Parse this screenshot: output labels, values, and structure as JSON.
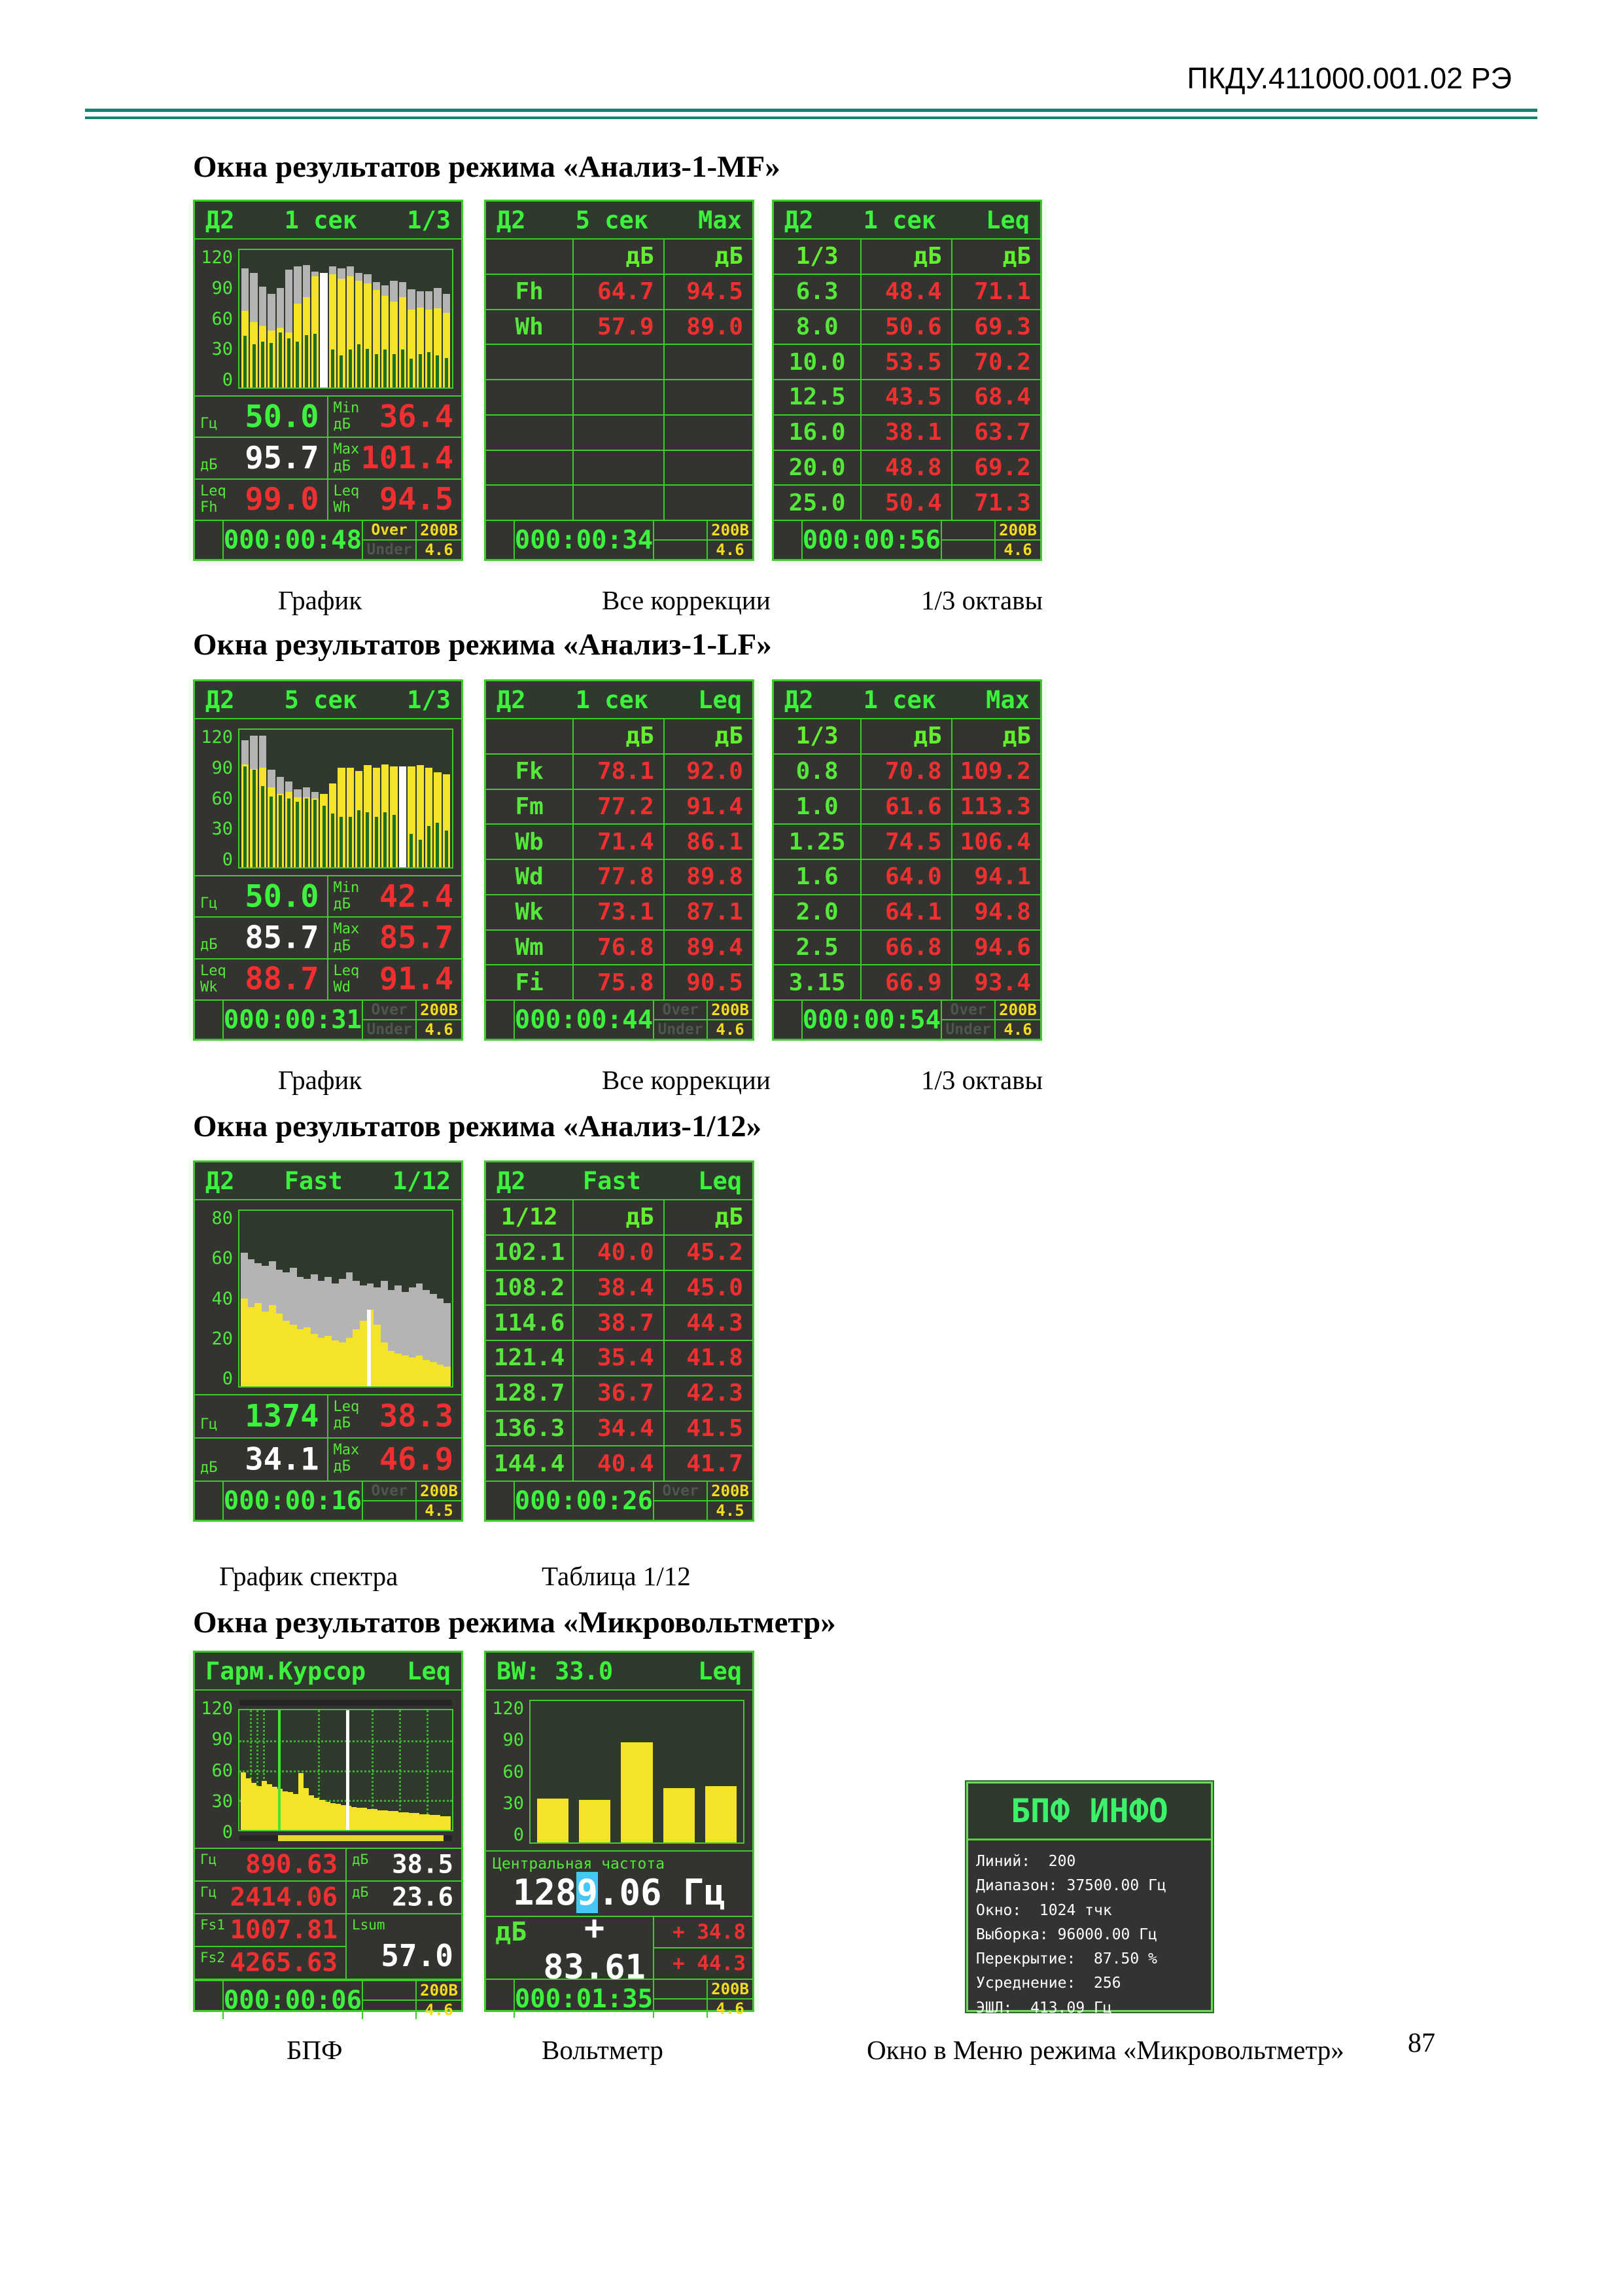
{
  "doc": {
    "header_code": "ПКДУ.411000.001.02 РЭ",
    "page_number": "87",
    "titles": [
      "Окна результатов режима «Анализ-1-MF»",
      "Окна результатов режима «Анализ-1-LF»",
      "Окна результатов режима «Анализ-1/12»",
      "Окна результатов режима «Микровольтметр»"
    ],
    "captions_row1": [
      "График",
      "Все коррекции",
      "1/3 октавы"
    ],
    "captions_row2": [
      "График",
      "Все коррекции",
      "1/3 октавы"
    ],
    "captions_row3": [
      "График спектра",
      "Таблица 1/12"
    ],
    "captions_row4": [
      "БПФ",
      "Вольтметр",
      "Окно в Меню режима «Микровольтметр»"
    ]
  },
  "screens": {
    "a1": {
      "title": {
        "l": "Д2",
        "m": "1 сек",
        "r": "1/3"
      },
      "axis": [
        "120",
        "90",
        "60",
        "30",
        "0"
      ],
      "chart": {
        "type": "bar",
        "ylim": [
          0,
          120
        ],
        "gray": [
          104,
          100,
          88,
          82,
          87,
          103,
          106,
          107,
          101,
          100,
          106,
          104,
          106,
          100,
          99,
          92,
          89,
          93,
          92,
          86,
          84,
          84,
          87,
          82
        ],
        "yellow": [
          67,
          57,
          54,
          50,
          52,
          48,
          73,
          79,
          97,
          100,
          99,
          95,
          97,
          93,
          91,
          85,
          80,
          75,
          79,
          68,
          70,
          68,
          69,
          65
        ],
        "green": [
          45,
          38,
          40,
          39,
          48,
          43,
          40,
          46,
          47,
          0,
          33,
          28,
          33,
          38,
          34,
          29,
          33,
          29,
          33,
          25,
          29,
          31,
          28,
          26
        ],
        "cursor": 9,
        "cursor_h": 100
      },
      "cells": [
        {
          "label": "Гц",
          "value": "50.0",
          "color": "green"
        },
        {
          "label": "Min\nдБ",
          "value": "36.4",
          "color": "red"
        },
        {
          "label": "дБ",
          "value": "95.7",
          "color": "white"
        },
        {
          "label": "Max\nдБ",
          "value": "101.4",
          "color": "red"
        },
        {
          "label": "Leq\nFh",
          "value": "99.0",
          "color": "red"
        },
        {
          "label": "Leq\nWh",
          "value": "94.5",
          "color": "red"
        }
      ],
      "status": {
        "timer": "000:00:48",
        "over": "Over",
        "under": "Under",
        "range": "200В",
        "gain": "4.6"
      }
    },
    "b1": {
      "title": {
        "l": "Д2",
        "m": "5 сек",
        "r": "Max"
      },
      "head": [
        "",
        "дБ",
        "дБ"
      ],
      "rows": [
        [
          "Fh",
          "64.7",
          "94.5"
        ],
        [
          "Wh",
          "57.9",
          "89.0"
        ],
        [
          "",
          "",
          ""
        ],
        [
          "",
          "",
          ""
        ],
        [
          "",
          "",
          ""
        ],
        [
          "",
          "",
          ""
        ],
        [
          "",
          "",
          ""
        ]
      ],
      "status": {
        "timer": "000:00:34",
        "over": "",
        "under": "",
        "range": "200В",
        "gain": "4.6"
      }
    },
    "b2": {
      "title": {
        "l": "Д2",
        "m": "1 сек",
        "r": "Leq"
      },
      "head": [
        "1/3",
        "дБ",
        "дБ"
      ],
      "rows": [
        [
          "6.3",
          "48.4",
          "71.1"
        ],
        [
          "8.0",
          "50.6",
          "69.3"
        ],
        [
          "10.0",
          "53.5",
          "70.2"
        ],
        [
          "12.5",
          "43.5",
          "68.4"
        ],
        [
          "16.0",
          "38.1",
          "63.7"
        ],
        [
          "20.0",
          "48.8",
          "69.2"
        ],
        [
          "25.0",
          "50.4",
          "71.3"
        ]
      ],
      "status": {
        "timer": "000:00:56",
        "over": "",
        "under": "",
        "range": "200В",
        "gain": "4.6"
      }
    },
    "a2": {
      "title": {
        "l": "Д2",
        "m": "5 сек",
        "r": "1/3"
      },
      "axis": [
        "120",
        "90",
        "60",
        "30",
        "0"
      ],
      "chart": {
        "type": "bar",
        "ylim": [
          0,
          120
        ],
        "gray": [
          111,
          115,
          115,
          85,
          79,
          75,
          68,
          70,
          66,
          64,
          73,
          87,
          87,
          84,
          89,
          87,
          90,
          88,
          88,
          88,
          89,
          87,
          83,
          81
        ],
        "yellow": [
          90,
          86,
          87,
          70,
          64,
          66,
          61,
          61,
          60,
          64,
          73,
          87,
          87,
          84,
          89,
          87,
          90,
          88,
          88,
          88,
          89,
          87,
          83,
          81
        ],
        "green": [
          88,
          85,
          71,
          62,
          63,
          60,
          57,
          60,
          59,
          54,
          47,
          44,
          44,
          50,
          48,
          44,
          48,
          46,
          0,
          29,
          24,
          36,
          39,
          32
        ],
        "cursor": 18,
        "cursor_h": 88
      },
      "cells": [
        {
          "label": "Гц",
          "value": "50.0",
          "color": "green"
        },
        {
          "label": "Min\nдБ",
          "value": "42.4",
          "color": "red"
        },
        {
          "label": "дБ",
          "value": "85.7",
          "color": "white"
        },
        {
          "label": "Max\nдБ",
          "value": "85.7",
          "color": "red"
        },
        {
          "label": "Leq\nWk",
          "value": "88.7",
          "color": "red"
        },
        {
          "label": "Leq\nWd",
          "value": "91.4",
          "color": "red"
        }
      ],
      "status": {
        "timer": "000:00:31",
        "over": "Over",
        "under": "Under",
        "range": "200В",
        "gain": "4.6"
      }
    },
    "b3": {
      "title": {
        "l": "Д2",
        "m": "1 сек",
        "r": "Leq"
      },
      "head": [
        "",
        "дБ",
        "дБ"
      ],
      "rows": [
        [
          "Fk",
          "78.1",
          "92.0"
        ],
        [
          "Fm",
          "77.2",
          "91.4"
        ],
        [
          "Wb",
          "71.4",
          "86.1"
        ],
        [
          "Wd",
          "77.8",
          "89.8"
        ],
        [
          "Wk",
          "73.1",
          "87.1"
        ],
        [
          "Wm",
          "76.8",
          "89.4"
        ],
        [
          "Fi",
          "75.8",
          "90.5"
        ]
      ],
      "status": {
        "timer": "000:00:44",
        "over": "Over",
        "under": "Under",
        "range": "200В",
        "gain": "4.6"
      }
    },
    "b4": {
      "title": {
        "l": "Д2",
        "m": "1 сек",
        "r": "Max"
      },
      "head": [
        "1/3",
        "дБ",
        "дБ"
      ],
      "rows": [
        [
          "0.8",
          "70.8",
          "109.2"
        ],
        [
          "1.0",
          "61.6",
          "113.3"
        ],
        [
          "1.25",
          "74.5",
          "106.4"
        ],
        [
          "1.6",
          "64.0",
          "94.1"
        ],
        [
          "2.0",
          "64.1",
          "94.8"
        ],
        [
          "2.5",
          "66.8",
          "94.6"
        ],
        [
          "3.15",
          "66.9",
          "93.4"
        ]
      ],
      "status": {
        "timer": "000:00:54",
        "over": "Over",
        "under": "Under",
        "range": "200В",
        "gain": "4.6"
      }
    },
    "c1": {
      "title": {
        "l": "Д2",
        "m": "Fast",
        "r": "1/12"
      },
      "axis": [
        "80",
        "60",
        "40",
        "20",
        "0"
      ],
      "chart": {
        "type": "area",
        "ylim": [
          0,
          80
        ],
        "gray": [
          61,
          58,
          56,
          55,
          57,
          53,
          52,
          54,
          50,
          49,
          51,
          48,
          50,
          47,
          49,
          52,
          48,
          46,
          47,
          45,
          48,
          44,
          46,
          43,
          45,
          47,
          44,
          42,
          40,
          38
        ],
        "yellow": [
          40,
          36,
          38,
          34,
          37,
          33,
          30,
          28,
          26,
          27,
          24,
          22,
          23,
          21,
          20,
          22,
          26,
          30,
          35,
          28,
          20,
          16,
          15,
          14,
          13,
          14,
          12,
          11,
          10,
          9
        ],
        "cursor": 18,
        "cursor_h": 35
      },
      "cells": [
        {
          "label": "Гц",
          "value": "1374",
          "color": "green"
        },
        {
          "label": "Leq\nдБ",
          "value": "38.3",
          "color": "red"
        },
        {
          "label": "дБ",
          "value": "34.1",
          "color": "white"
        },
        {
          "label": "Max\nдБ",
          "value": "46.9",
          "color": "red"
        }
      ],
      "status": {
        "timer": "000:00:16",
        "over": "Over",
        "under": "",
        "range": "200В",
        "gain": "4.5"
      }
    },
    "b5": {
      "title": {
        "l": "Д2",
        "m": "Fast",
        "r": "Leq"
      },
      "head": [
        "1/12",
        "дБ",
        "дБ"
      ],
      "rows": [
        [
          "102.1",
          "40.0",
          "45.2"
        ],
        [
          "108.2",
          "38.4",
          "45.0"
        ],
        [
          "114.6",
          "38.7",
          "44.3"
        ],
        [
          "121.4",
          "35.4",
          "41.8"
        ],
        [
          "128.7",
          "36.7",
          "42.3"
        ],
        [
          "136.3",
          "34.4",
          "41.5"
        ],
        [
          "144.4",
          "40.4",
          "41.7"
        ]
      ],
      "status": {
        "timer": "000:00:26",
        "over": "Over",
        "under": "",
        "range": "200В",
        "gain": "4.5"
      }
    },
    "d1": {
      "title": {
        "l": "Гарм.Курсор",
        "m": "",
        "r": "Leq"
      },
      "axis": [
        "120",
        "90",
        "60",
        "30",
        "0"
      ],
      "chart": {
        "type": "area",
        "ylim": [
          0,
          120
        ],
        "yellow": [
          58,
          52,
          47,
          44,
          49,
          46,
          43,
          41,
          39,
          38,
          36,
          57,
          42,
          35,
          32,
          30,
          28,
          27,
          26,
          25,
          24,
          23,
          22,
          22,
          21,
          21,
          20,
          20,
          19,
          19,
          18,
          18,
          17,
          17,
          16,
          16,
          15,
          15,
          14,
          14
        ]
      },
      "left_cells": [
        {
          "label": "Гц",
          "value": "890.63"
        },
        {
          "label": "Гц",
          "value": "2414.06"
        },
        {
          "label": "Fs1",
          "value": "1007.81"
        },
        {
          "label": "Fs2",
          "value": "4265.63"
        }
      ],
      "right_cells": [
        {
          "label": "дБ",
          "value": "38.5"
        },
        {
          "label": "дБ",
          "value": "23.6"
        }
      ],
      "lsum": {
        "label": "Lsum",
        "value": "57.0"
      },
      "status": {
        "timer": "000:00:06",
        "over": "",
        "under": "",
        "range": "200В",
        "gain": "4.6"
      }
    },
    "e1": {
      "title": {
        "l": "BW: 33.0",
        "m": "",
        "r": "Leq"
      },
      "axis": [
        "120",
        "90",
        "60",
        "30",
        "0"
      ],
      "chart": {
        "type": "bar",
        "ylim": [
          0,
          120
        ],
        "values": [
          37,
          36,
          85,
          46,
          48
        ]
      },
      "freq_label": "Центральная частота",
      "freq_prefix": "128",
      "freq_cursor": "9",
      "freq_suffix": ".06 Гц",
      "db_label": "дБ",
      "db_value": "+ 83.61",
      "delta1": "+ 34.8",
      "delta2": "+ 44.3",
      "status": {
        "timer": "000:01:35",
        "over": "",
        "under": "",
        "range": "200В",
        "gain": "4.6"
      }
    },
    "fft": {
      "title": "БПФ ИНФО",
      "lines": [
        "Линий:  200",
        "Диапазон: 37500.00 Гц",
        "Окно:  1024 тчк",
        "Выборка: 96000.00 Гц",
        "Перекрытие:  87.50 %",
        "Усреднение:  256",
        "ЭШЛ:  413.09 Гц"
      ]
    }
  }
}
